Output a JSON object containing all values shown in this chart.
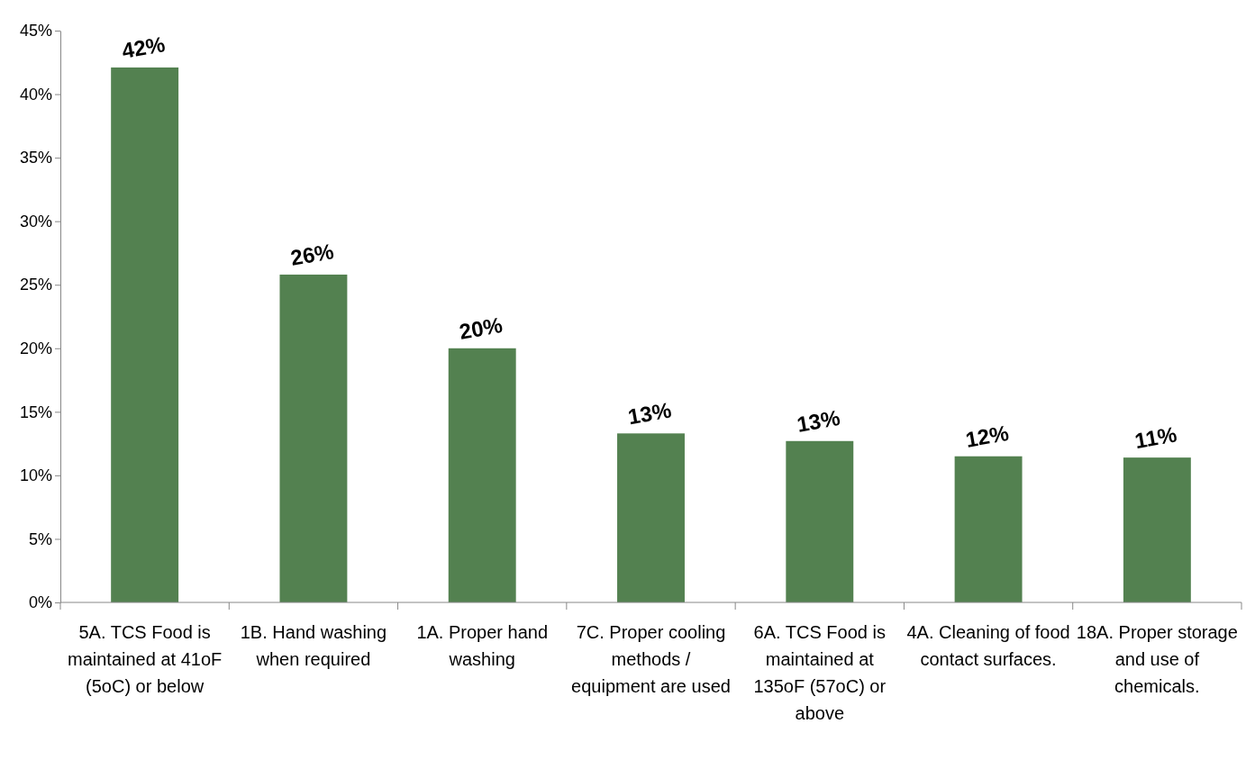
{
  "chart_data": {
    "type": "bar",
    "categories": [
      "5A. TCS Food is maintained at 41oF (5oC) or below",
      "1B. Hand washing when required",
      "1A. Proper hand washing",
      "7C. Proper cooling methods / equipment are used",
      "6A. TCS Food is maintained at 135oF (57oC) or above",
      "4A. Cleaning of food contact surfaces.",
      "18A. Proper storage and use of chemicals."
    ],
    "values": [
      42.1,
      25.8,
      20.0,
      13.3,
      12.7,
      11.5,
      11.4
    ],
    "value_labels": [
      "42%",
      "26%",
      "20%",
      "13%",
      "13%",
      "12%",
      "11%"
    ],
    "color": "#538150",
    "ylim": [
      0,
      45
    ],
    "yticks": [
      {
        "value": 0,
        "label": "0%"
      },
      {
        "value": 5,
        "label": "5%"
      },
      {
        "value": 10,
        "label": "10%"
      },
      {
        "value": 15,
        "label": "15%"
      },
      {
        "value": 20,
        "label": "20%"
      },
      {
        "value": 25,
        "label": "25%"
      },
      {
        "value": 30,
        "label": "30%"
      },
      {
        "value": 35,
        "label": "35%"
      },
      {
        "value": 40,
        "label": "40%"
      },
      {
        "value": 45,
        "label": "45%"
      }
    ],
    "grid": false
  }
}
